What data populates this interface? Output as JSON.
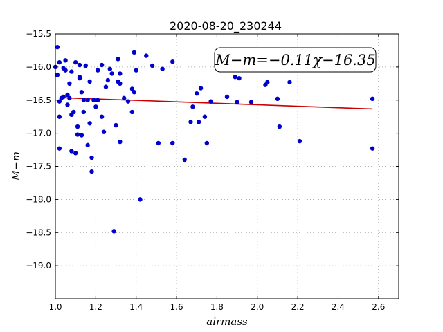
{
  "chart_data": {
    "type": "scatter",
    "title": "2020-08-20_230244",
    "xlabel": "airmass",
    "ylabel": "M−m",
    "xlim": [
      1.0,
      2.7
    ],
    "ylim": [
      -15.5,
      -19.5
    ],
    "y_inverted": true,
    "grid": true,
    "xticks": [
      1.0,
      1.2,
      1.4,
      1.6,
      1.8,
      2.0,
      2.2,
      2.4,
      2.6
    ],
    "xtick_labels": [
      "1.0",
      "1.2",
      "1.4",
      "1.6",
      "1.8",
      "2.0",
      "2.2",
      "2.4",
      "2.6"
    ],
    "yticks": [
      -15.5,
      -16.0,
      -16.5,
      -17.0,
      -17.5,
      -18.0,
      -18.5,
      -19.0
    ],
    "ytick_labels": [
      "−15.5",
      "−16.0",
      "−16.5",
      "−17.0",
      "−17.5",
      "−18.0",
      "−18.5",
      "−19.0"
    ],
    "annotation": "M−m=−0.11χ−16.35",
    "colors": {
      "points": "#0000cc",
      "fit": "#cc0000",
      "grid": "#999999"
    },
    "fit": {
      "slope": -0.11,
      "intercept": -16.35,
      "x_range": [
        1.05,
        2.57
      ]
    },
    "points": [
      [
        1.0,
        -16.0
      ],
      [
        1.01,
        -15.7
      ],
      [
        1.01,
        -16.12
      ],
      [
        1.02,
        -15.93
      ],
      [
        1.02,
        -16.52
      ],
      [
        1.02,
        -16.75
      ],
      [
        1.02,
        -17.23
      ],
      [
        1.03,
        -16.47
      ],
      [
        1.04,
        -16.45
      ],
      [
        1.04,
        -16.02
      ],
      [
        1.05,
        -16.05
      ],
      [
        1.05,
        -15.9
      ],
      [
        1.06,
        -16.42
      ],
      [
        1.06,
        -16.57
      ],
      [
        1.07,
        -16.25
      ],
      [
        1.07,
        -16.47
      ],
      [
        1.08,
        -16.72
      ],
      [
        1.08,
        -17.27
      ],
      [
        1.08,
        -16.07
      ],
      [
        1.09,
        -16.68
      ],
      [
        1.1,
        -17.3
      ],
      [
        1.1,
        -15.93
      ],
      [
        1.11,
        -16.9
      ],
      [
        1.11,
        -17.02
      ],
      [
        1.12,
        -16.15
      ],
      [
        1.12,
        -16.17
      ],
      [
        1.12,
        -15.97
      ],
      [
        1.13,
        -17.03
      ],
      [
        1.13,
        -16.38
      ],
      [
        1.14,
        -16.68
      ],
      [
        1.14,
        -16.5
      ],
      [
        1.15,
        -15.98
      ],
      [
        1.16,
        -17.18
      ],
      [
        1.16,
        -16.5
      ],
      [
        1.17,
        -16.85
      ],
      [
        1.17,
        -16.22
      ],
      [
        1.18,
        -17.37
      ],
      [
        1.18,
        -17.58
      ],
      [
        1.19,
        -16.5
      ],
      [
        1.2,
        -16.6
      ],
      [
        1.21,
        -16.05
      ],
      [
        1.21,
        -16.5
      ],
      [
        1.23,
        -15.97
      ],
      [
        1.23,
        -16.75
      ],
      [
        1.24,
        -16.98
      ],
      [
        1.25,
        -16.3
      ],
      [
        1.26,
        -16.2
      ],
      [
        1.27,
        -16.03
      ],
      [
        1.28,
        -16.1
      ],
      [
        1.29,
        -18.48
      ],
      [
        1.3,
        -16.88
      ],
      [
        1.31,
        -15.88
      ],
      [
        1.31,
        -16.22
      ],
      [
        1.32,
        -17.13
      ],
      [
        1.32,
        -16.1
      ],
      [
        1.32,
        -16.25
      ],
      [
        1.34,
        -16.47
      ],
      [
        1.36,
        -16.52
      ],
      [
        1.38,
        -16.68
      ],
      [
        1.38,
        -16.33
      ],
      [
        1.39,
        -16.38
      ],
      [
        1.39,
        -15.78
      ],
      [
        1.4,
        -16.05
      ],
      [
        1.42,
        -18.0
      ],
      [
        1.45,
        -15.83
      ],
      [
        1.48,
        -15.98
      ],
      [
        1.51,
        -17.15
      ],
      [
        1.53,
        -16.03
      ],
      [
        1.58,
        -17.15
      ],
      [
        1.58,
        -15.92
      ],
      [
        1.64,
        -17.4
      ],
      [
        1.67,
        -16.83
      ],
      [
        1.68,
        -16.6
      ],
      [
        1.7,
        -16.4
      ],
      [
        1.71,
        -16.83
      ],
      [
        1.72,
        -16.32
      ],
      [
        1.74,
        -16.75
      ],
      [
        1.75,
        -17.15
      ],
      [
        1.77,
        -16.52
      ],
      [
        1.85,
        -16.45
      ],
      [
        1.89,
        -16.15
      ],
      [
        1.9,
        -16.53
      ],
      [
        1.91,
        -16.17
      ],
      [
        1.97,
        -16.53
      ],
      [
        2.04,
        -16.27
      ],
      [
        2.05,
        -16.23
      ],
      [
        2.1,
        -16.48
      ],
      [
        2.11,
        -16.9
      ],
      [
        2.16,
        -16.23
      ],
      [
        2.21,
        -17.12
      ],
      [
        2.57,
        -17.23
      ],
      [
        2.57,
        -16.48
      ]
    ]
  }
}
